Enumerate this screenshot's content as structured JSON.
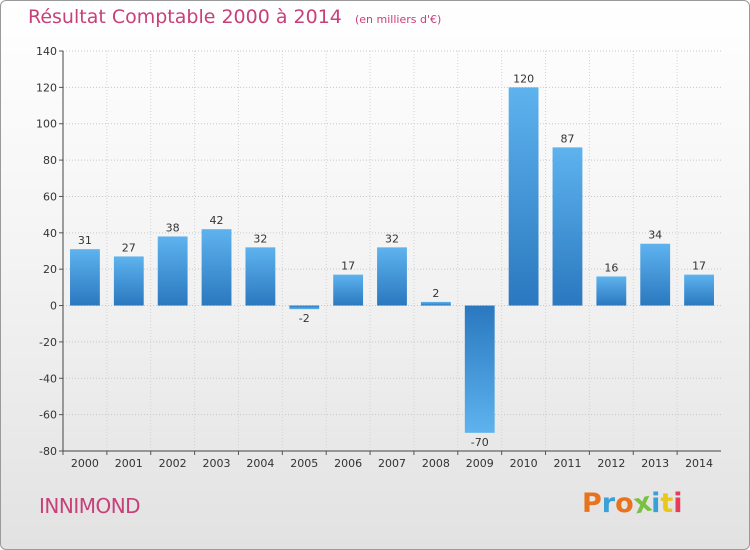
{
  "chart_data": {
    "type": "bar",
    "title": "Résultat Comptable 2000 à 2014",
    "subtitle": "(en milliers d'€)",
    "categories": [
      "2000",
      "2001",
      "2002",
      "2003",
      "2004",
      "2005",
      "2006",
      "2007",
      "2008",
      "2009",
      "2010",
      "2011",
      "2012",
      "2013",
      "2014"
    ],
    "values": [
      31,
      27,
      38,
      42,
      32,
      -2,
      17,
      32,
      2,
      -70,
      120,
      87,
      16,
      34,
      17
    ],
    "ylim": [
      -80,
      140
    ],
    "yticks": [
      -80,
      -60,
      -40,
      -20,
      0,
      20,
      40,
      60,
      80,
      100,
      120,
      140
    ],
    "grid": true,
    "bar_color": "#3a8fd6"
  },
  "footer": {
    "place_name": "INNIMOND",
    "logo_text": "Proxiti",
    "logo_colors": [
      "#e8731e",
      "#3aa0d8",
      "#e8731e",
      "#7ac143",
      "#3aa0d8",
      "#e8c81e",
      "#e83b5a"
    ]
  }
}
